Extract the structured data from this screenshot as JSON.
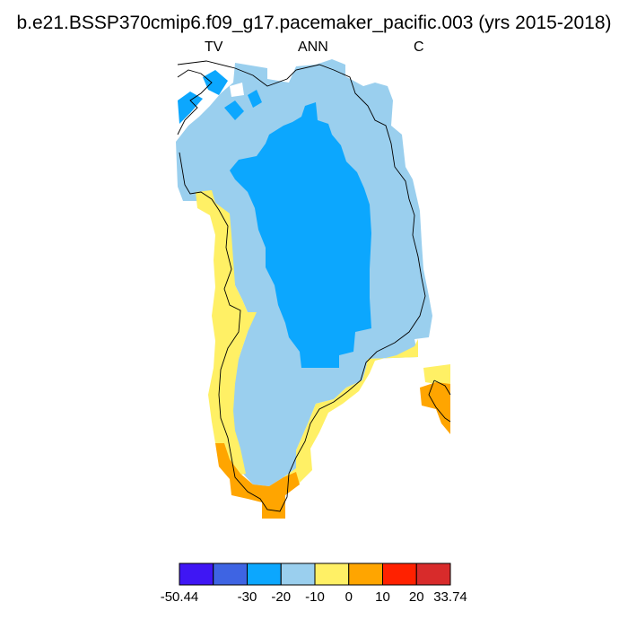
{
  "title": "b.e21.BSSP370cmip6.f09_g17.pacemaker_pacific.003 (yrs 2015-2018)",
  "subtitle": {
    "left": "TV",
    "center": "ANN",
    "right": "C"
  },
  "colors": {
    "background": "#ffffff",
    "bins": [
      "#3f16f4",
      "#3e64e3",
      "#0ca7fe",
      "#9acfee",
      "#fff065",
      "#ffa500",
      "#ff2100",
      "#d82b2b"
    ],
    "coastline": "#000000"
  },
  "colorbar": {
    "labels": [
      "-50.44",
      "-30",
      "-20",
      "-10",
      "0",
      "10",
      "20",
      "33.74"
    ]
  }
}
